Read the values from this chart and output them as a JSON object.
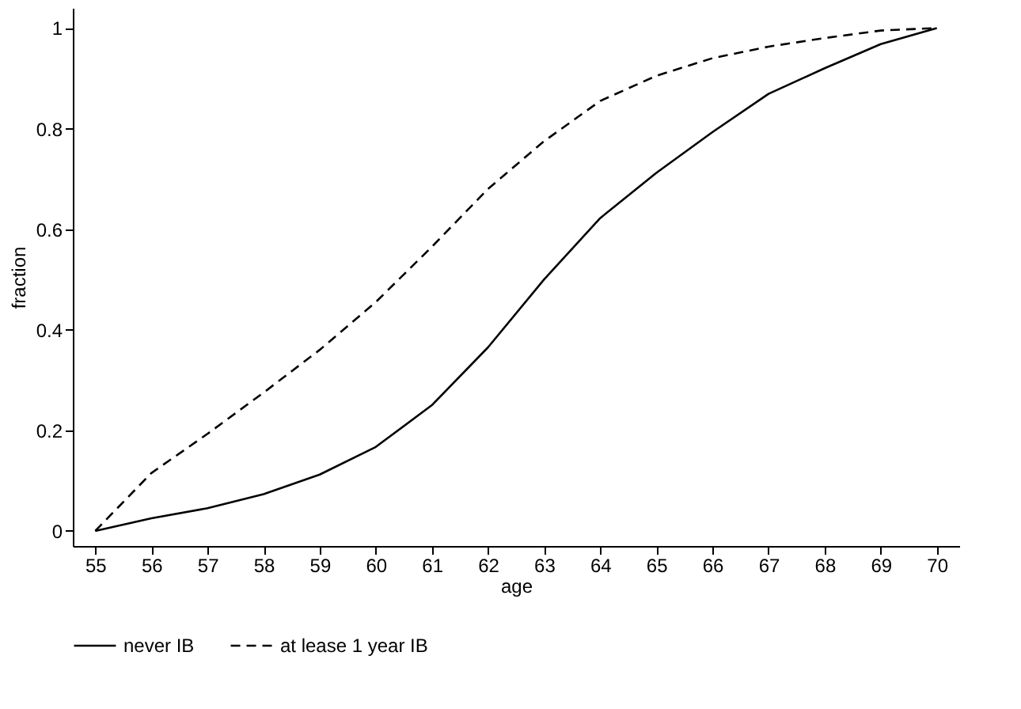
{
  "chart_data": {
    "type": "line",
    "xlabel": "age",
    "ylabel": "fraction",
    "x": [
      55,
      56,
      57,
      58,
      59,
      60,
      61,
      62,
      63,
      64,
      65,
      66,
      67,
      68,
      69,
      70
    ],
    "series": [
      {
        "name": "never IB",
        "color": "#000000",
        "line_style": "solid",
        "values": [
          0,
          0.025,
          0.045,
          0.073,
          0.112,
          0.167,
          0.25,
          0.365,
          0.5,
          0.622,
          0.712,
          0.793,
          0.869,
          0.92,
          0.968,
          1
        ]
      },
      {
        "name": "at lease 1 year IB",
        "color": "#000000",
        "line_style": "dashed",
        "values": [
          0,
          0.115,
          0.193,
          0.275,
          0.36,
          0.455,
          0.565,
          0.68,
          0.775,
          0.855,
          0.905,
          0.94,
          0.963,
          0.98,
          0.995,
          1
        ]
      }
    ],
    "xlim": [
      54.6,
      70.4
    ],
    "ylim": [
      -0.03,
      1.04
    ],
    "xticks": [
      55,
      56,
      57,
      58,
      59,
      60,
      61,
      62,
      63,
      64,
      65,
      66,
      67,
      68,
      69,
      70
    ],
    "yticks": [
      0,
      0.2,
      0.4,
      0.6,
      0.8,
      1
    ],
    "grid": false,
    "legend": "bottom",
    "marker": "none"
  }
}
